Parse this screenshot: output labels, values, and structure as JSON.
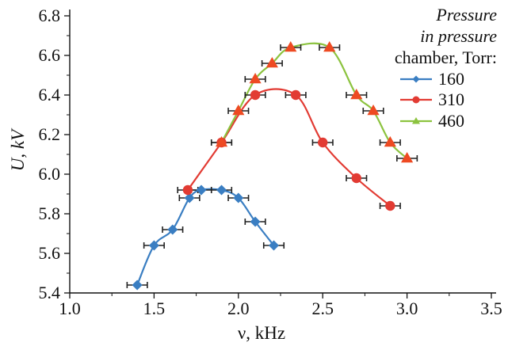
{
  "chart_data": {
    "type": "line",
    "xlabel": "ν, kHz",
    "ylabel": "U, kV",
    "xlim": [
      1.0,
      3.5
    ],
    "ylim": [
      5.4,
      6.8
    ],
    "x_ticks": [
      "1.0",
      "1.5",
      "2.0",
      "2.5",
      "3.0",
      "3.5"
    ],
    "y_ticks": [
      "5.4",
      "5.6",
      "5.8",
      "6.0",
      "6.2",
      "6.4",
      "6.6",
      "6.8"
    ],
    "grid": false,
    "legend_position": "top-right",
    "legend_title": [
      "Pressure",
      "in pressure",
      "chamber, Torr:"
    ],
    "series": [
      {
        "name": "160",
        "color": "#3a7ec2",
        "marker": "diamond",
        "x": [
          1.4,
          1.5,
          1.61,
          1.71,
          1.78,
          1.9,
          2.0,
          2.1,
          2.21
        ],
        "y": [
          5.44,
          5.64,
          5.72,
          5.88,
          5.92,
          5.92,
          5.88,
          5.76,
          5.64
        ],
        "x_err": 0.06
      },
      {
        "name": "310",
        "color": "#e23b33",
        "marker": "circle",
        "x": [
          1.7,
          1.9,
          2.1,
          2.34,
          2.5,
          2.7,
          2.9
        ],
        "y": [
          5.92,
          6.16,
          6.4,
          6.4,
          6.16,
          5.98,
          5.84
        ],
        "x_err": 0.06
      },
      {
        "name": "460",
        "color": "#8cc33f",
        "marker": "triangle",
        "x": [
          1.9,
          2.0,
          2.1,
          2.2,
          2.31,
          2.54,
          2.7,
          2.8,
          2.9,
          3.0
        ],
        "y": [
          6.16,
          6.32,
          6.48,
          6.56,
          6.64,
          6.64,
          6.4,
          6.32,
          6.16,
          6.08
        ],
        "x_err": 0.06
      }
    ],
    "errorbar_color": "#222222",
    "triangle_fill": "#ee4a22"
  }
}
